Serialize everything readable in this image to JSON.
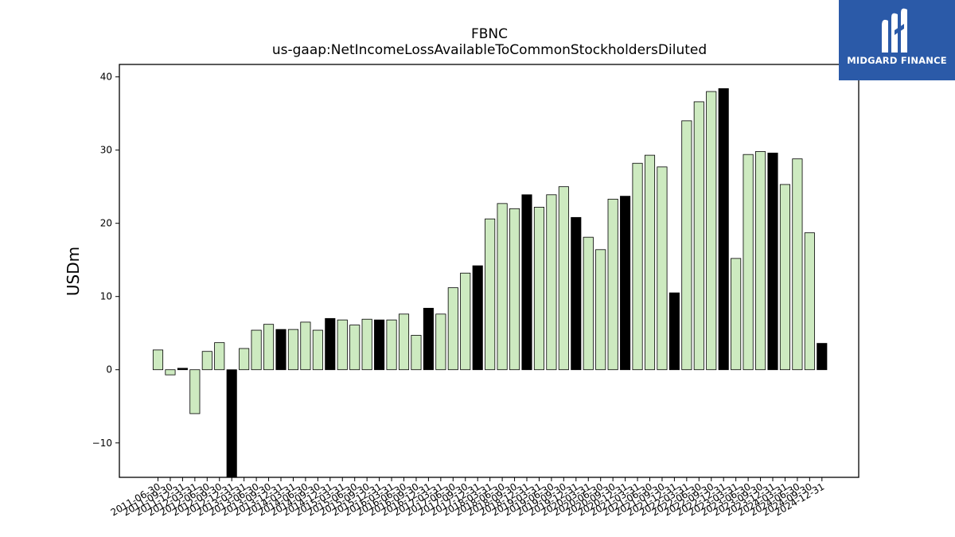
{
  "chart_data": {
    "type": "bar",
    "title": "FBNC",
    "subtitle": "us-gaap:NetIncomeLossAvailableToCommonStockholdersDiluted",
    "xlabel": "",
    "ylabel": "USDm",
    "ylim": [
      -14.7,
      41.7
    ],
    "yticks": [
      -10,
      0,
      10,
      20,
      30,
      40
    ],
    "grid": false,
    "colors": {
      "quarter": "#cdeac0",
      "annual": "#000000",
      "edge": "#000000"
    },
    "categories": [
      "2011-06-30",
      "2011-09-30",
      "2011-12-31",
      "2012-03-31",
      "2012-06-30",
      "2012-09-30",
      "2012-12-31",
      "2013-03-31",
      "2013-06-30",
      "2013-09-30",
      "2013-12-31",
      "2014-03-31",
      "2014-06-30",
      "2014-09-30",
      "2014-12-31",
      "2015-03-31",
      "2015-06-30",
      "2015-09-30",
      "2015-12-31",
      "2016-03-31",
      "2016-06-30",
      "2016-09-30",
      "2016-12-31",
      "2017-03-31",
      "2017-06-30",
      "2017-09-30",
      "2017-12-31",
      "2018-03-31",
      "2018-06-30",
      "2018-09-30",
      "2018-12-31",
      "2019-03-31",
      "2019-06-30",
      "2019-09-30",
      "2019-12-31",
      "2020-03-31",
      "2020-06-30",
      "2020-09-30",
      "2020-12-31",
      "2021-03-31",
      "2021-06-30",
      "2021-09-30",
      "2021-12-31",
      "2022-03-31",
      "2022-06-30",
      "2022-09-30",
      "2022-12-31",
      "2023-03-31",
      "2023-06-30",
      "2023-09-30",
      "2023-12-31",
      "2024-03-31",
      "2024-06-30",
      "2024-09-30",
      "2024-12-31"
    ],
    "values": [
      2.7,
      -0.7,
      0.2,
      -6.0,
      2.5,
      3.7,
      -15.5,
      2.9,
      5.4,
      6.2,
      5.5,
      5.5,
      6.5,
      5.4,
      7.0,
      6.8,
      6.1,
      6.9,
      6.8,
      6.8,
      7.6,
      4.7,
      8.4,
      7.6,
      11.2,
      13.2,
      14.2,
      20.6,
      22.7,
      22.0,
      23.9,
      22.2,
      23.9,
      25.0,
      20.8,
      18.1,
      16.4,
      23.3,
      23.7,
      28.2,
      29.3,
      27.7,
      10.5,
      34.0,
      36.6,
      38.0,
      38.4,
      15.2,
      29.4,
      29.8,
      29.6,
      25.3,
      28.8,
      18.7,
      3.6
    ],
    "annual_flags": [
      false,
      false,
      true,
      false,
      false,
      false,
      true,
      false,
      false,
      false,
      true,
      false,
      false,
      false,
      true,
      false,
      false,
      false,
      true,
      false,
      false,
      false,
      true,
      false,
      false,
      false,
      true,
      false,
      false,
      false,
      true,
      false,
      false,
      false,
      true,
      false,
      false,
      false,
      true,
      false,
      false,
      false,
      true,
      false,
      false,
      false,
      true,
      false,
      false,
      false,
      true,
      false,
      false,
      false,
      true
    ]
  },
  "logo": {
    "text": "MIDGARD FINANCE"
  }
}
